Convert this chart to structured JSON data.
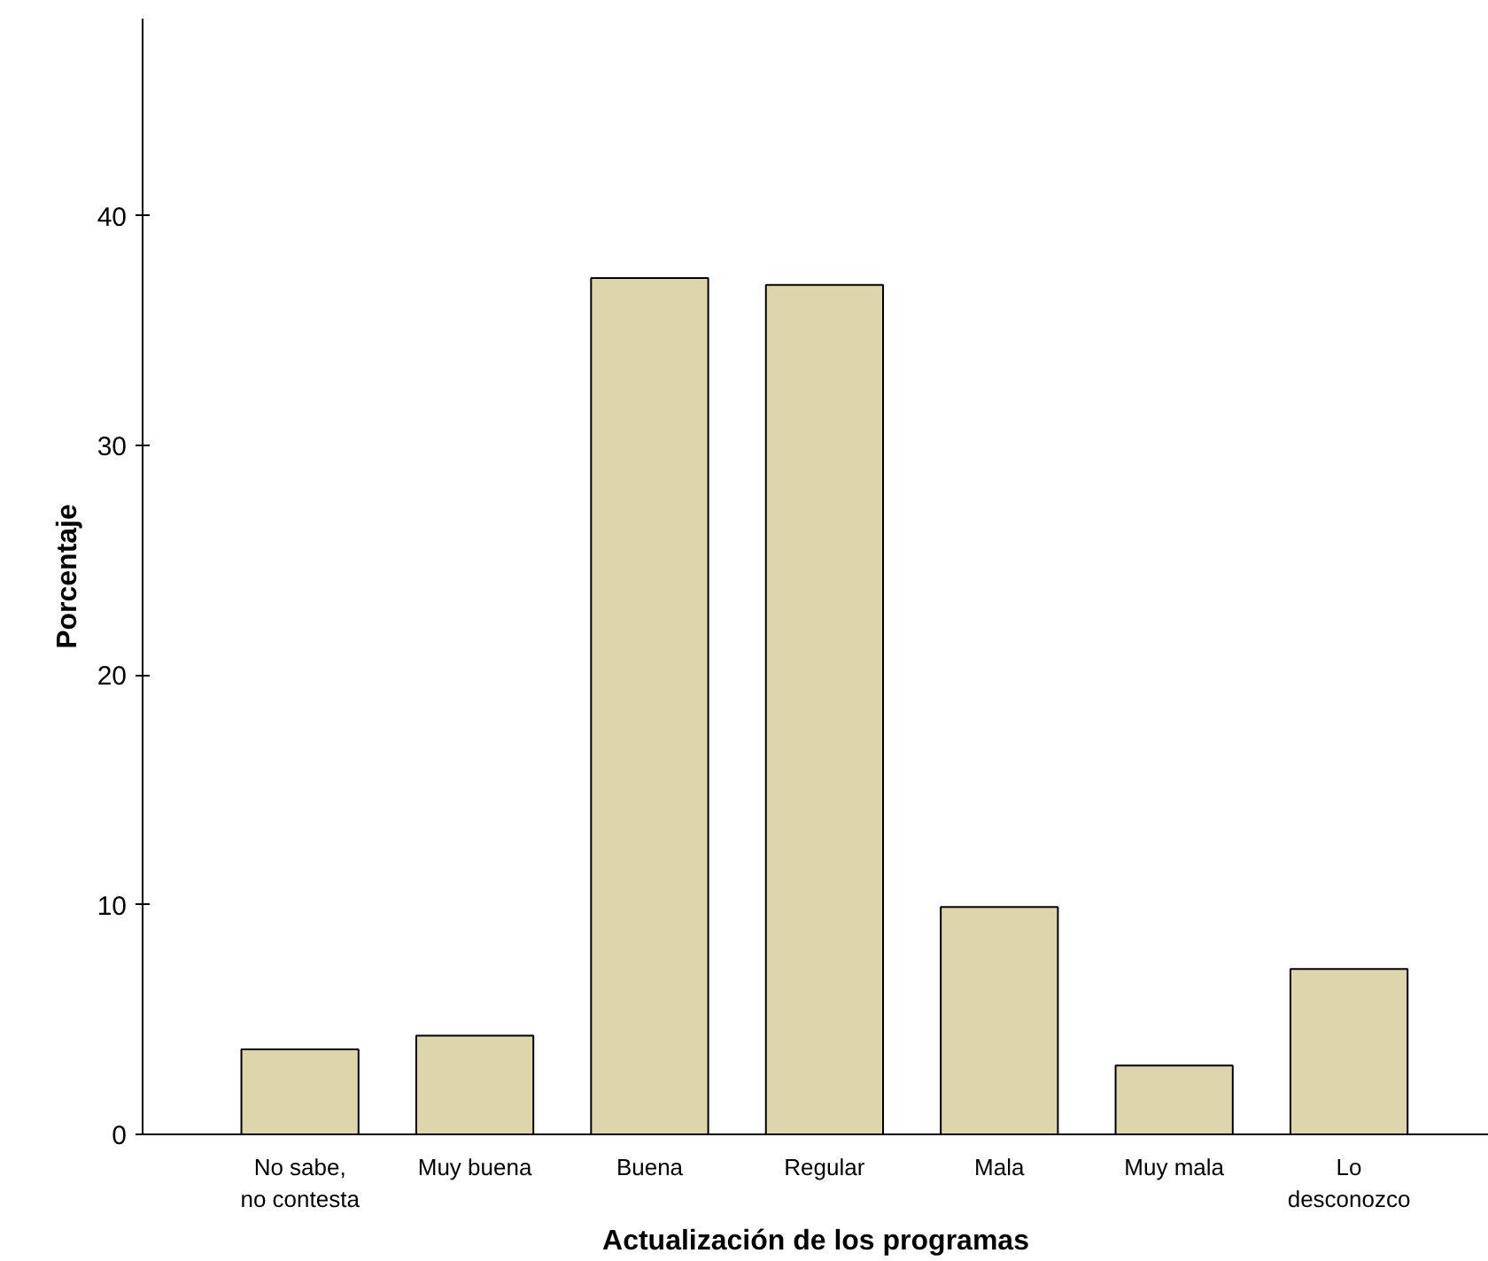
{
  "chart_data": {
    "type": "bar",
    "xlabel": "Actualización de los programas",
    "ylabel": "Porcentaje",
    "categories": [
      "No sabe,\nno contesta",
      "Muy buena",
      "Buena",
      "Regular",
      "Mala",
      "Muy mala",
      "Lo\ndesconozco"
    ],
    "values": [
      3.7,
      4.3,
      37.3,
      37.0,
      9.9,
      3.0,
      7.2
    ],
    "color": "#ddd6ad",
    "ylim": [
      0,
      48.6
    ],
    "yticks": [
      0,
      10,
      20,
      30,
      40
    ],
    "grid": false
  }
}
